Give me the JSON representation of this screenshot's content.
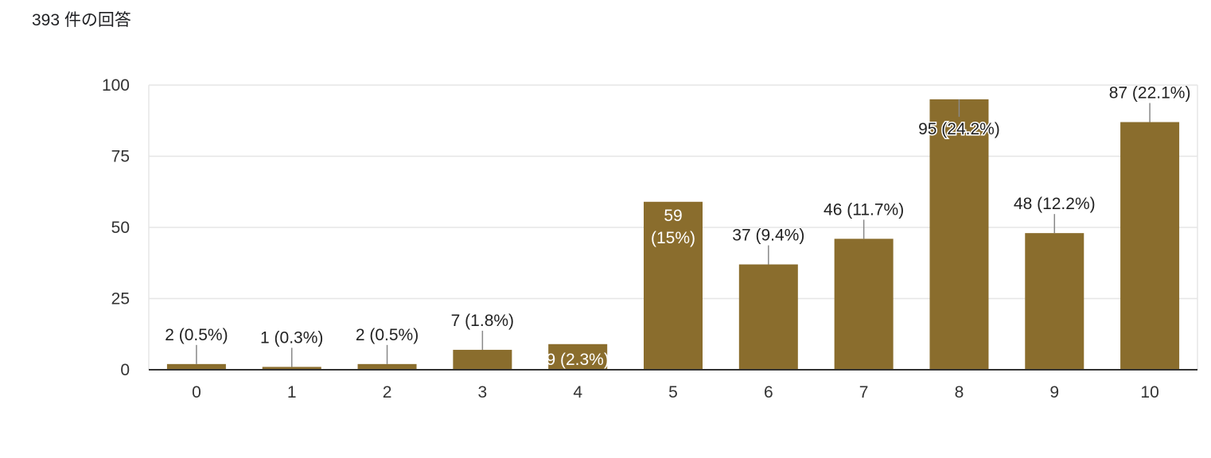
{
  "header": {
    "response_count": "393 件の回答"
  },
  "colors": {
    "bar": "#8a6d2d",
    "grid": "#e6e6e6",
    "axis": "#333333",
    "leader": "#888888"
  },
  "chart_data": {
    "type": "bar",
    "categories": [
      "0",
      "1",
      "2",
      "3",
      "4",
      "5",
      "6",
      "7",
      "8",
      "9",
      "10"
    ],
    "values": [
      2,
      1,
      2,
      7,
      9,
      59,
      37,
      46,
      95,
      48,
      87
    ],
    "data_labels": [
      "2 (0.5%)",
      "1 (0.3%)",
      "2 (0.5%)",
      "7 (1.8%)",
      "9 (2.3%)",
      "59 (15%)",
      "37 (9.4%)",
      "46 (11.7%)",
      "95 (24.2%)",
      "48 (12.2%)",
      "87 (22.1%)"
    ],
    "ylim": [
      0,
      100
    ],
    "yticks": [
      "0",
      "25",
      "50",
      "75",
      "100"
    ],
    "ytick_values": [
      0,
      25,
      50,
      75,
      100
    ],
    "grid": true,
    "legend": "none"
  }
}
